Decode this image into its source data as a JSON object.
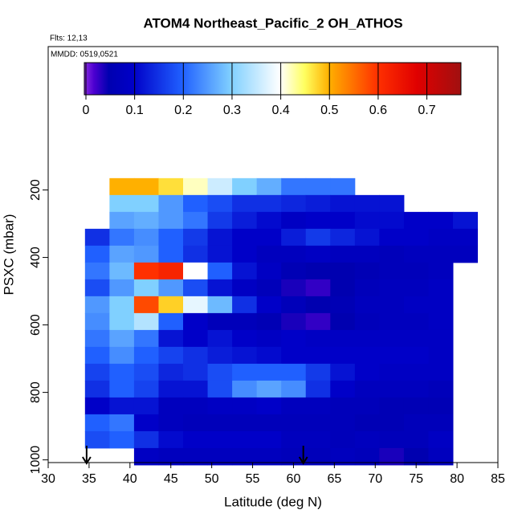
{
  "chart_data": {
    "type": "heatmap",
    "title": "ATOM4 Northeast_Pacific_2 OH_ATHOS",
    "subtitle": "Flts: 12,13",
    "annotation": "MMDD: 0519,0521",
    "x_label": "Latitude (deg N)",
    "y_label": "PSXC (mbar)",
    "xlim": [
      30,
      85
    ],
    "xticks": [
      30,
      35,
      40,
      45,
      50,
      55,
      60,
      65,
      70,
      75,
      80,
      85
    ],
    "ylim": [
      1008,
      -225
    ],
    "yticks": [
      200,
      400,
      600,
      800,
      1000
    ],
    "clim": [
      0,
      0.77
    ],
    "cticks": [
      0.0,
      0.1,
      0.2,
      0.3,
      0.4,
      0.5,
      0.6,
      0.7
    ],
    "colorscale": [
      [
        0,
        "#8a2be2"
      ],
      [
        0.02,
        "#4b00d0"
      ],
      [
        0.05,
        "#0000b0"
      ],
      [
        0.1,
        "#0000c8"
      ],
      [
        0.2,
        "#2060ff"
      ],
      [
        0.3,
        "#80d0ff"
      ],
      [
        0.4,
        "#ffffff"
      ],
      [
        0.45,
        "#ffff60"
      ],
      [
        0.5,
        "#ffb000"
      ],
      [
        0.6,
        "#ff3000"
      ],
      [
        0.68,
        "#e00000"
      ],
      [
        0.77,
        "#a01010"
      ]
    ],
    "arrows_x": [
      34.7,
      61.2
    ],
    "x": [
      36,
      39,
      42,
      45,
      48,
      51,
      54,
      57,
      60,
      63,
      66,
      69,
      72,
      75,
      78,
      81
    ],
    "y": [
      190,
      240,
      290,
      340,
      390,
      440,
      490,
      540,
      590,
      640,
      690,
      740,
      790,
      840,
      890,
      940,
      990
    ],
    "z": [
      [
        null,
        0.5,
        0.5,
        0.47,
        0.42,
        0.36,
        0.3,
        0.27,
        0.22,
        0.22,
        0.22,
        null,
        null,
        null,
        null,
        null
      ],
      [
        null,
        0.3,
        0.3,
        0.25,
        0.2,
        0.18,
        0.15,
        0.15,
        0.14,
        0.13,
        0.12,
        0.12,
        0.12,
        null,
        null,
        null
      ],
      [
        null,
        0.26,
        0.27,
        0.25,
        0.22,
        0.16,
        0.13,
        0.11,
        0.09,
        0.1,
        0.1,
        0.11,
        0.11,
        0.1,
        0.1,
        0.12
      ],
      [
        0.15,
        0.22,
        0.24,
        0.2,
        0.16,
        0.12,
        0.1,
        0.1,
        0.13,
        0.16,
        0.14,
        0.12,
        0.1,
        0.1,
        0.09,
        0.09
      ],
      [
        0.2,
        0.26,
        0.25,
        0.2,
        0.15,
        0.12,
        0.1,
        0.08,
        0.08,
        0.09,
        0.08,
        0.08,
        0.07,
        0.08,
        0.08,
        0.08
      ],
      [
        0.22,
        0.28,
        0.6,
        0.62,
        0.4,
        0.2,
        0.12,
        0.09,
        0.06,
        0.05,
        0.05,
        0.06,
        0.07,
        0.07,
        0.08,
        null
      ],
      [
        0.18,
        0.25,
        0.3,
        0.25,
        0.18,
        0.12,
        0.09,
        0.07,
        0.04,
        0.03,
        0.05,
        0.07,
        0.08,
        0.08,
        0.09,
        null
      ],
      [
        0.25,
        0.3,
        0.58,
        0.48,
        0.38,
        0.28,
        0.15,
        0.1,
        0.07,
        0.05,
        0.06,
        0.08,
        0.08,
        0.09,
        0.09,
        null
      ],
      [
        0.24,
        0.3,
        0.34,
        0.2,
        0.1,
        0.07,
        0.07,
        0.06,
        0.04,
        0.03,
        0.05,
        0.07,
        0.08,
        0.08,
        0.09,
        null
      ],
      [
        0.22,
        0.26,
        0.22,
        0.12,
        0.1,
        0.12,
        0.1,
        0.09,
        0.1,
        0.09,
        0.09,
        0.09,
        0.09,
        0.09,
        0.09,
        null
      ],
      [
        0.2,
        0.24,
        0.2,
        0.17,
        0.15,
        0.13,
        0.12,
        0.11,
        0.1,
        0.1,
        0.1,
        0.1,
        0.1,
        0.1,
        0.09,
        null
      ],
      [
        0.17,
        0.2,
        0.18,
        0.14,
        0.15,
        0.18,
        0.2,
        0.2,
        0.2,
        0.16,
        0.12,
        0.1,
        0.09,
        0.09,
        0.09,
        null
      ],
      [
        0.15,
        0.2,
        0.17,
        0.12,
        0.12,
        0.18,
        0.24,
        0.26,
        0.24,
        0.15,
        0.1,
        0.08,
        0.08,
        0.08,
        0.07,
        null
      ],
      [
        0.1,
        0.12,
        0.12,
        0.08,
        0.08,
        0.09,
        0.09,
        0.1,
        0.08,
        0.08,
        0.07,
        0.07,
        0.06,
        0.06,
        0.06,
        null
      ],
      [
        0.2,
        0.22,
        0.1,
        0.08,
        0.07,
        0.07,
        0.07,
        0.07,
        0.07,
        0.07,
        0.07,
        0.06,
        0.06,
        0.07,
        0.07,
        null
      ],
      [
        0.18,
        0.2,
        0.15,
        0.11,
        0.1,
        0.1,
        0.1,
        0.1,
        0.08,
        0.08,
        0.07,
        0.08,
        0.07,
        0.07,
        0.09,
        null
      ],
      [
        null,
        null,
        0.09,
        0.08,
        0.08,
        0.08,
        0.08,
        0.08,
        0.07,
        0.07,
        0.08,
        0.07,
        0.04,
        0.05,
        0.08,
        null
      ]
    ]
  }
}
